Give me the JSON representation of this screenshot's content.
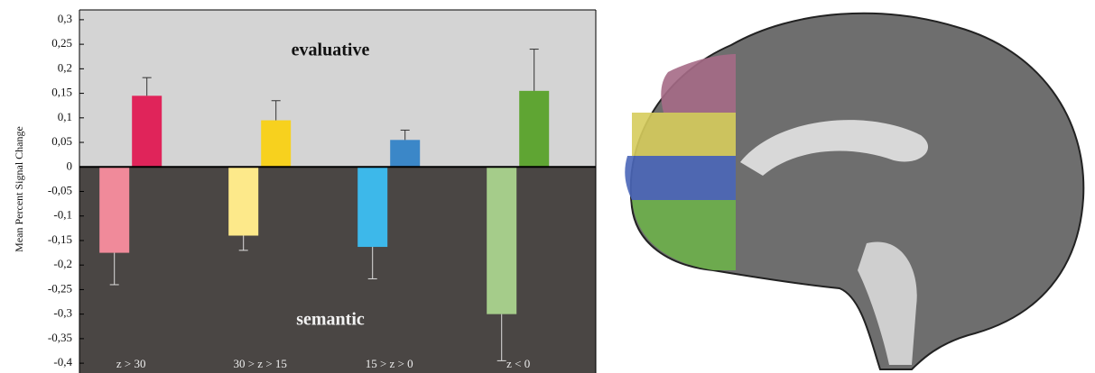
{
  "chart_data": {
    "type": "bar",
    "y_label": "Mean Percent Signal Change",
    "categories": [
      "z > 30",
      "30 > z > 15",
      "15 > z > 0",
      "z < 0"
    ],
    "series": [
      {
        "name": "semantic",
        "colors": [
          "#f08a9a",
          "#fde98a",
          "#3db8ea",
          "#a5cc8a"
        ],
        "values": [
          -0.175,
          -0.14,
          -0.163,
          -0.3
        ],
        "errors": [
          0.065,
          0.03,
          0.065,
          0.095
        ]
      },
      {
        "name": "evaluative",
        "colors": [
          "#e0245a",
          "#f7d11e",
          "#3b87c8",
          "#5fa533"
        ],
        "values": [
          0.145,
          0.095,
          0.055,
          0.155
        ],
        "errors": [
          0.037,
          0.04,
          0.02,
          0.085
        ]
      }
    ],
    "ylim": [
      -0.42,
      0.32
    ],
    "yticks": [
      {
        "value": 0.3,
        "label": "0,3"
      },
      {
        "value": 0.25,
        "label": "0,25"
      },
      {
        "value": 0.2,
        "label": "0,2"
      },
      {
        "value": 0.15,
        "label": "0,15"
      },
      {
        "value": 0.1,
        "label": "0,1"
      },
      {
        "value": 0.05,
        "label": "0,05"
      },
      0,
      {
        "value": -0.05,
        "label": "-0,05"
      },
      {
        "value": -0.1,
        "label": "-0,1"
      },
      {
        "value": -0.15,
        "label": "-0,15"
      },
      {
        "value": -0.2,
        "label": "-0,2"
      },
      {
        "value": -0.25,
        "label": "-0,25"
      },
      {
        "value": -0.3,
        "label": "-0,3"
      },
      {
        "value": -0.35,
        "label": "-0,35"
      },
      {
        "value": -0.4,
        "label": "-0,4"
      }
    ]
  }
}
